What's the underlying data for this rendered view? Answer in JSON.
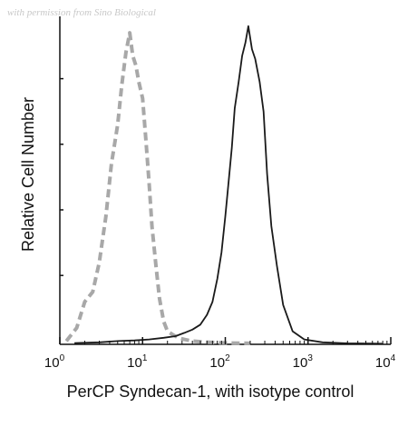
{
  "watermark": "with permission from Sino Biological",
  "chart_data": {
    "type": "line",
    "title": "",
    "xlabel": "PerCP Syndecan-1, with isotype control",
    "ylabel": "Relative Cell Number",
    "x_scale": "log",
    "xlim": [
      1,
      10000
    ],
    "ylim": [
      0,
      100
    ],
    "x_ticks": [
      {
        "value": 1,
        "base": "10",
        "exp": "0"
      },
      {
        "value": 10,
        "base": "10",
        "exp": "1"
      },
      {
        "value": 100,
        "base": "10",
        "exp": "2"
      },
      {
        "value": 1000,
        "base": "10",
        "exp": "3"
      },
      {
        "value": 10000,
        "base": "10",
        "exp": "4"
      }
    ],
    "grid": false,
    "legend": "none",
    "series": [
      {
        "style": "dashed",
        "color": "#a8a8a8",
        "x": [
          1.2,
          1.6,
          2.0,
          2.5,
          3.0,
          3.6,
          4.2,
          5.0,
          5.6,
          6.3,
          7.0,
          7.6,
          8.3,
          9.0,
          10.0,
          11.0,
          12.0,
          13.0,
          14.5,
          16,
          18,
          20,
          23,
          27,
          32,
          40,
          55,
          80,
          120,
          200
        ],
        "y": [
          1,
          5,
          13,
          16,
          25,
          39,
          55,
          67,
          79,
          89,
          95,
          88,
          85,
          80,
          75,
          62,
          49,
          36,
          24,
          14,
          7,
          4,
          3,
          2,
          1.5,
          1,
          0.7,
          0.5,
          0.4,
          0.3
        ]
      },
      {
        "style": "solid",
        "color": "#1a1a1a",
        "x": [
          1.5,
          3,
          5,
          8,
          12,
          18,
          25,
          32,
          40,
          50,
          60,
          70,
          80,
          90,
          100,
          110,
          120,
          130,
          145,
          160,
          175,
          190,
          210,
          230,
          260,
          290,
          320,
          360,
          420,
          500,
          650,
          900,
          1500,
          3000,
          8000
        ],
        "y": [
          0.4,
          0.6,
          1,
          1.2,
          1.5,
          2,
          2.5,
          3.5,
          4.5,
          6,
          9,
          13,
          20,
          28,
          39,
          50,
          60,
          72,
          80,
          88,
          92,
          97,
          90,
          87,
          80,
          71,
          52,
          36,
          24,
          12,
          4,
          1.5,
          0.6,
          0.3,
          0.2
        ]
      }
    ]
  }
}
